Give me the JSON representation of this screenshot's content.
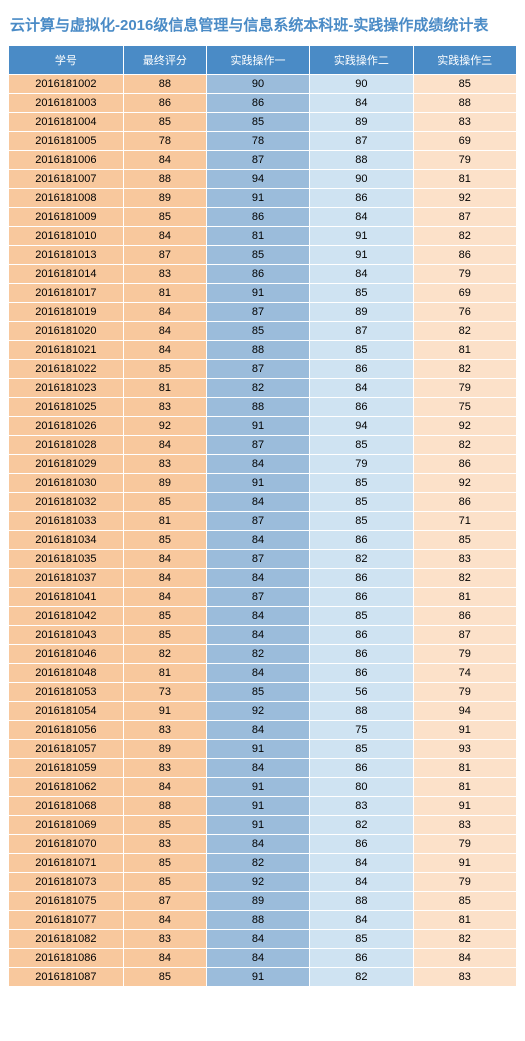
{
  "title": "云计算与虚拟化-2016级信息管理与信息系统本科班-实践操作成绩统计表",
  "table": {
    "type": "table",
    "background_color": "#ffffff",
    "header_bg": "#4a8bc6",
    "header_text_color": "#ffffff",
    "title_color": "#4a8bc6",
    "title_fontsize": 15,
    "cell_fontsize": 11,
    "border_color": "#ffffff",
    "columns": [
      {
        "label": "学号",
        "bg": "#f8c89d",
        "width": 0.22
      },
      {
        "label": "最终评分",
        "bg": "#f8c89d",
        "width": 0.195
      },
      {
        "label": "实践操作一",
        "bg": "#9bbcdb",
        "width": 0.195
      },
      {
        "label": "实践操作二",
        "bg": "#cfe3f2",
        "width": 0.195
      },
      {
        "label": "实践操作三",
        "bg": "#fce1c9",
        "width": 0.195
      }
    ],
    "rows": [
      [
        "2016181002",
        88,
        90,
        90,
        85
      ],
      [
        "2016181003",
        86,
        86,
        84,
        88
      ],
      [
        "2016181004",
        85,
        85,
        89,
        83
      ],
      [
        "2016181005",
        78,
        78,
        87,
        69
      ],
      [
        "2016181006",
        84,
        87,
        88,
        79
      ],
      [
        "2016181007",
        88,
        94,
        90,
        81
      ],
      [
        "2016181008",
        89,
        91,
        86,
        92
      ],
      [
        "2016181009",
        85,
        86,
        84,
        87
      ],
      [
        "2016181010",
        84,
        81,
        91,
        82
      ],
      [
        "2016181013",
        87,
        85,
        91,
        86
      ],
      [
        "2016181014",
        83,
        86,
        84,
        79
      ],
      [
        "2016181017",
        81,
        91,
        85,
        69
      ],
      [
        "2016181019",
        84,
        87,
        89,
        76
      ],
      [
        "2016181020",
        84,
        85,
        87,
        82
      ],
      [
        "2016181021",
        84,
        88,
        85,
        81
      ],
      [
        "2016181022",
        85,
        87,
        86,
        82
      ],
      [
        "2016181023",
        81,
        82,
        84,
        79
      ],
      [
        "2016181025",
        83,
        88,
        86,
        75
      ],
      [
        "2016181026",
        92,
        91,
        94,
        92
      ],
      [
        "2016181028",
        84,
        87,
        85,
        82
      ],
      [
        "2016181029",
        83,
        84,
        79,
        86
      ],
      [
        "2016181030",
        89,
        91,
        85,
        92
      ],
      [
        "2016181032",
        85,
        84,
        85,
        86
      ],
      [
        "2016181033",
        81,
        87,
        85,
        71
      ],
      [
        "2016181034",
        85,
        84,
        86,
        85
      ],
      [
        "2016181035",
        84,
        87,
        82,
        83
      ],
      [
        "2016181037",
        84,
        84,
        86,
        82
      ],
      [
        "2016181041",
        84,
        87,
        86,
        81
      ],
      [
        "2016181042",
        85,
        84,
        85,
        86
      ],
      [
        "2016181043",
        85,
        84,
        86,
        87
      ],
      [
        "2016181046",
        82,
        82,
        86,
        79
      ],
      [
        "2016181048",
        81,
        84,
        86,
        74
      ],
      [
        "2016181053",
        73,
        85,
        56,
        79
      ],
      [
        "2016181054",
        91,
        92,
        88,
        94
      ],
      [
        "2016181056",
        83,
        84,
        75,
        91
      ],
      [
        "2016181057",
        89,
        91,
        85,
        93
      ],
      [
        "2016181059",
        83,
        84,
        86,
        81
      ],
      [
        "2016181062",
        84,
        91,
        80,
        81
      ],
      [
        "2016181068",
        88,
        91,
        83,
        91
      ],
      [
        "2016181069",
        85,
        91,
        82,
        83
      ],
      [
        "2016181070",
        83,
        84,
        86,
        79
      ],
      [
        "2016181071",
        85,
        82,
        84,
        91
      ],
      [
        "2016181073",
        85,
        92,
        84,
        79
      ],
      [
        "2016181075",
        87,
        89,
        88,
        85
      ],
      [
        "2016181077",
        84,
        88,
        84,
        81
      ],
      [
        "2016181082",
        83,
        84,
        85,
        82
      ],
      [
        "2016181086",
        84,
        84,
        86,
        84
      ],
      [
        "2016181087",
        85,
        91,
        82,
        83
      ]
    ]
  }
}
